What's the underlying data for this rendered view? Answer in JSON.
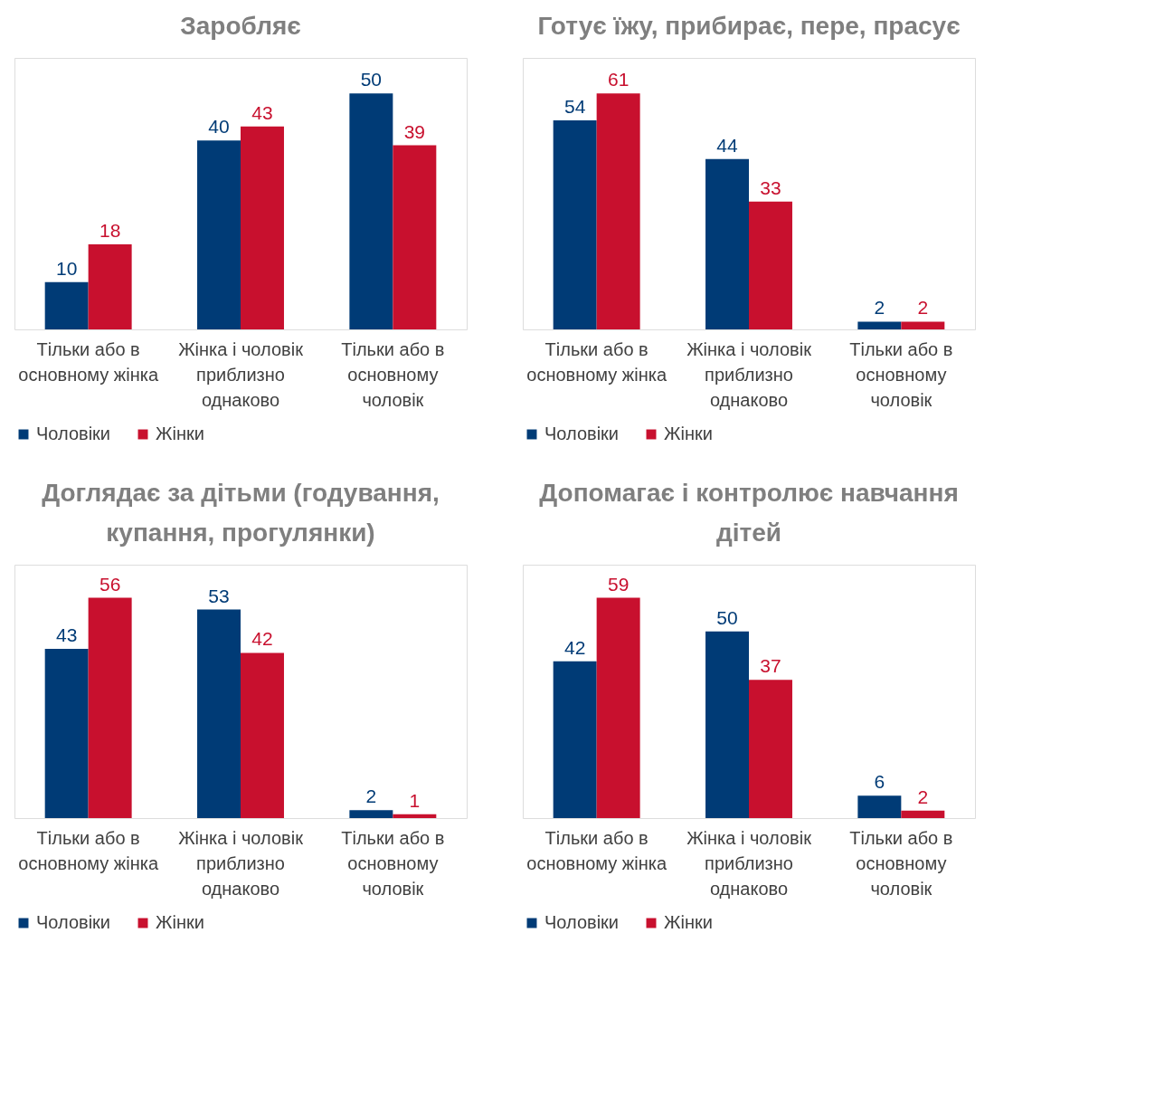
{
  "chart_data": [
    {
      "type": "bar",
      "title": "Заробляє",
      "categories": [
        "Тільки або в основному жінка",
        "Жінка і чоловік приблизно однаково",
        "Тільки або в основному чоловік"
      ],
      "series": [
        {
          "name": "Чоловіки",
          "color": "#003b76",
          "values": [
            10,
            40,
            50
          ]
        },
        {
          "name": "Жінки",
          "color": "#c8102e",
          "values": [
            18,
            43,
            39
          ]
        }
      ],
      "data_labels": true,
      "legend": "bottom"
    },
    {
      "type": "bar",
      "title": "Готує їжу, прибирає, пере, прасує",
      "categories": [
        "Тільки або в основному жінка",
        "Жінка і чоловік приблизно однаково",
        "Тільки або в основному чоловік"
      ],
      "series": [
        {
          "name": "Чоловіки",
          "color": "#003b76",
          "values": [
            54,
            44,
            2
          ]
        },
        {
          "name": "Жінки",
          "color": "#c8102e",
          "values": [
            61,
            33,
            2
          ]
        }
      ],
      "data_labels": true,
      "legend": "bottom"
    },
    {
      "type": "bar",
      "title": "Доглядає за дітьми (годування, купання, прогулянки)",
      "categories": [
        "Тільки або в основному жінка",
        "Жінка і чоловік приблизно однаково",
        "Тільки або в основному чоловік"
      ],
      "series": [
        {
          "name": "Чоловіки",
          "color": "#003b76",
          "values": [
            43,
            53,
            2
          ]
        },
        {
          "name": "Жінки",
          "color": "#c8102e",
          "values": [
            56,
            42,
            1
          ]
        }
      ],
      "data_labels": true,
      "legend": "bottom"
    },
    {
      "type": "bar",
      "title": "Допомагає і контролює навчання дітей",
      "categories": [
        "Тільки або в основному жінка",
        "Жінка і чоловік приблизно однаково",
        "Тільки або в основному чоловік"
      ],
      "series": [
        {
          "name": "Чоловіки",
          "color": "#003b76",
          "values": [
            42,
            50,
            6
          ]
        },
        {
          "name": "Жінки",
          "color": "#c8102e",
          "values": [
            59,
            37,
            2
          ]
        }
      ],
      "data_labels": true,
      "legend": "bottom"
    }
  ]
}
